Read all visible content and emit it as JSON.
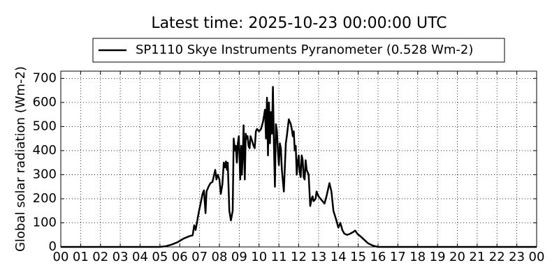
{
  "chart_data": {
    "type": "line",
    "title": "Latest time: 2025-10-23 00:00:00 UTC",
    "y_label": "Global solar radiation (Wm-2)",
    "series": [
      {
        "name": "SP1110 Skye Instruments Pyranometer (0.528 Wm-2)",
        "color": "#000000",
        "x": [
          0,
          5.0,
          5.3,
          5.6,
          5.9,
          6.2,
          6.5,
          6.65,
          6.73,
          6.8,
          6.95,
          7.05,
          7.15,
          7.22,
          7.3,
          7.35,
          7.45,
          7.55,
          7.65,
          7.79,
          7.85,
          7.92,
          8.0,
          8.07,
          8.15,
          8.22,
          8.28,
          8.33,
          8.38,
          8.42,
          8.5,
          8.58,
          8.67,
          8.72,
          8.78,
          8.83,
          8.88,
          8.93,
          8.98,
          9.05,
          9.1,
          9.13,
          9.18,
          9.22,
          9.28,
          9.33,
          9.37,
          9.42,
          9.47,
          9.52,
          9.57,
          9.65,
          9.72,
          9.78,
          9.84,
          9.9,
          10.0,
          10.1,
          10.2,
          10.3,
          10.35,
          10.4,
          10.45,
          10.5,
          10.55,
          10.6,
          10.65,
          10.7,
          10.75,
          10.8,
          10.85,
          10.9,
          10.95,
          11.0,
          11.05,
          11.1,
          11.15,
          11.25,
          11.35,
          11.4,
          11.5,
          11.55,
          11.6,
          11.65,
          11.7,
          11.75,
          11.8,
          11.85,
          11.9,
          11.95,
          12.0,
          12.05,
          12.1,
          12.15,
          12.2,
          12.25,
          12.3,
          12.35,
          12.4,
          12.5,
          12.58,
          12.65,
          12.7,
          12.75,
          12.85,
          12.9,
          13.0,
          13.1,
          13.2,
          13.3,
          13.4,
          13.55,
          13.65,
          13.75,
          13.9,
          14.0,
          14.1,
          14.2,
          14.3,
          14.45,
          14.6,
          14.75,
          14.85,
          14.95,
          15.1,
          15.3,
          15.5,
          15.75,
          15.9,
          16.0,
          24
        ],
        "values": [
          0,
          0,
          3,
          10,
          20,
          35,
          45,
          48,
          90,
          70,
          140,
          180,
          220,
          235,
          140,
          230,
          250,
          265,
          270,
          320,
          280,
          300,
          280,
          220,
          260,
          350,
          330,
          355,
          320,
          350,
          150,
          110,
          150,
          450,
          400,
          420,
          350,
          430,
          460,
          280,
          420,
          300,
          380,
          505,
          280,
          470,
          450,
          460,
          420,
          410,
          460,
          440,
          420,
          410,
          480,
          490,
          480,
          490,
          520,
          570,
          450,
          620,
          380,
          600,
          430,
          560,
          470,
          665,
          420,
          250,
          510,
          480,
          400,
          340,
          430,
          410,
          320,
          230,
          430,
          460,
          530,
          520,
          510,
          490,
          460,
          480,
          400,
          420,
          300,
          350,
          380,
          310,
          290,
          380,
          360,
          290,
          280,
          360,
          320,
          300,
          170,
          200,
          210,
          190,
          200,
          230,
          210,
          200,
          190,
          180,
          210,
          265,
          230,
          150,
          110,
          80,
          100,
          70,
          55,
          50,
          55,
          62,
          68,
          55,
          45,
          30,
          15,
          5,
          2,
          0,
          0
        ]
      }
    ],
    "xlim": [
      0,
      24
    ],
    "xticks": [
      {
        "value": 0,
        "label": "00"
      },
      {
        "value": 1,
        "label": "01"
      },
      {
        "value": 2,
        "label": "02"
      },
      {
        "value": 3,
        "label": "03"
      },
      {
        "value": 4,
        "label": "04"
      },
      {
        "value": 5,
        "label": "05"
      },
      {
        "value": 6,
        "label": "06"
      },
      {
        "value": 7,
        "label": "07"
      },
      {
        "value": 8,
        "label": "08"
      },
      {
        "value": 9,
        "label": "09"
      },
      {
        "value": 10,
        "label": "10"
      },
      {
        "value": 11,
        "label": "11"
      },
      {
        "value": 12,
        "label": "12"
      },
      {
        "value": 13,
        "label": "13"
      },
      {
        "value": 14,
        "label": "14"
      },
      {
        "value": 15,
        "label": "15"
      },
      {
        "value": 16,
        "label": "16"
      },
      {
        "value": 17,
        "label": "17"
      },
      {
        "value": 18,
        "label": "18"
      },
      {
        "value": 19,
        "label": "19"
      },
      {
        "value": 20,
        "label": "20"
      },
      {
        "value": 21,
        "label": "21"
      },
      {
        "value": 22,
        "label": "22"
      },
      {
        "value": 23,
        "label": "23"
      },
      {
        "value": 24,
        "label": "00"
      }
    ],
    "ylim": [
      0,
      730
    ],
    "yticks": [
      0,
      100,
      200,
      300,
      400,
      500,
      600,
      700
    ],
    "grid": true
  }
}
